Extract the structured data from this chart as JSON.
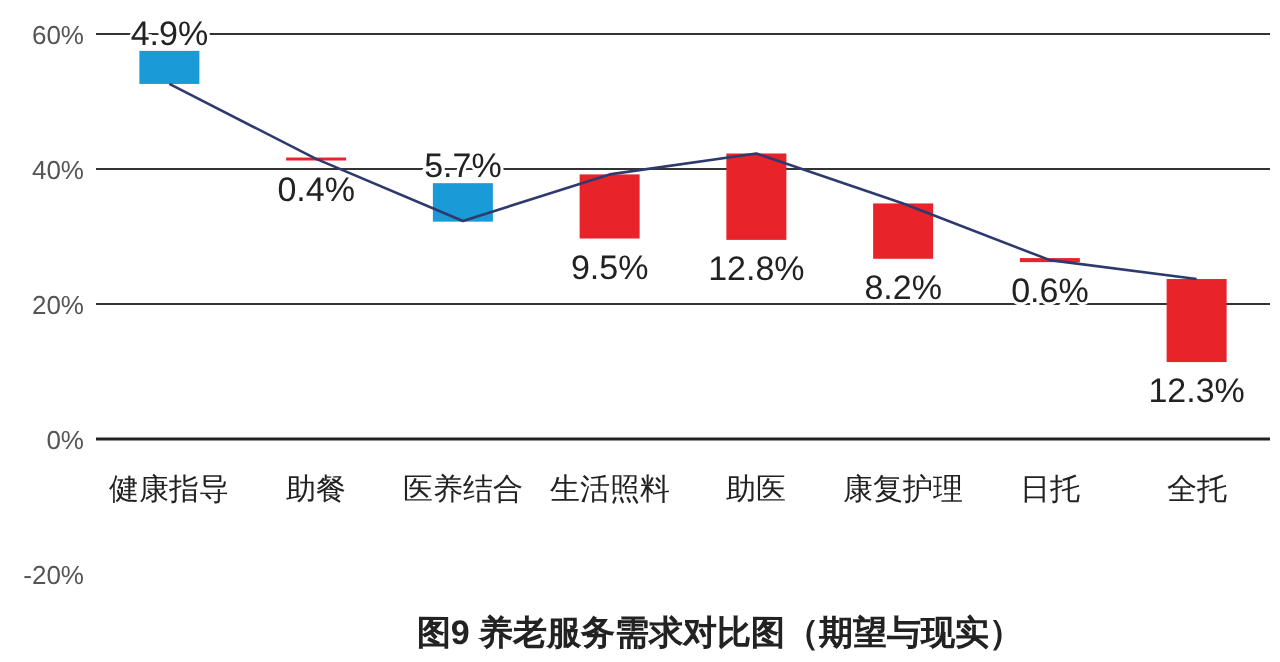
{
  "chart_data": {
    "type": "bar",
    "title": "图9 养老服务需求对比图（期望与现实）",
    "categories": [
      "健康指导",
      "助餐",
      "医养结合",
      "生活照料",
      "助医",
      "康复护理",
      "日托",
      "全托"
    ],
    "series": [
      {
        "type": "bar",
        "base": [
          52.6,
          41.3,
          32.2,
          29.7,
          29.5,
          26.7,
          26.2,
          11.4
        ],
        "values": [
          4.9,
          0.4,
          5.7,
          9.5,
          12.8,
          8.2,
          0.6,
          12.3
        ],
        "colors": [
          "#1a9ad6",
          "#e8242a",
          "#1a9ad6",
          "#e8242a",
          "#e8242a",
          "#e8242a",
          "#e8242a",
          "#e8242a"
        ],
        "value_labels": [
          "4.9%",
          "0.4%",
          "5.7%",
          "9.5%",
          "12.8%",
          "8.2%",
          "0.6%",
          "12.3%"
        ]
      },
      {
        "type": "line",
        "color": "#2e3a6e",
        "values": [
          52.6,
          41.5,
          32.3,
          39.2,
          42.3,
          34.9,
          26.5,
          23.7
        ]
      }
    ],
    "ylim": [
      -20,
      60
    ],
    "yticks": [
      {
        "value": -20,
        "label": "-20%"
      },
      {
        "value": 0,
        "label": "0%"
      },
      {
        "value": 20,
        "label": "20%"
      },
      {
        "value": 40,
        "label": "40%"
      },
      {
        "value": 60,
        "label": "60%"
      }
    ],
    "grid": "y"
  }
}
